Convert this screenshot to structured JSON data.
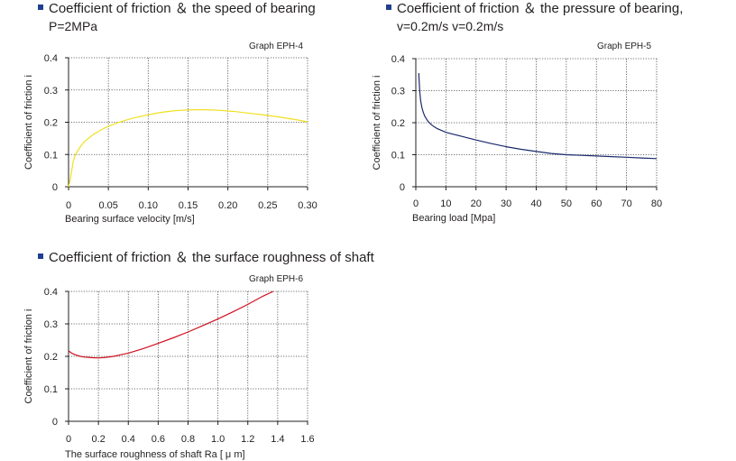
{
  "colors": {
    "bullet": "#1f3f8f",
    "grid": "#444444",
    "axis": "#231f20"
  },
  "chart_data": [
    {
      "id": "eph4",
      "type": "line",
      "heading": "Coefficient of friction ＆ the speed of bearing",
      "subheading": "P=2MPa",
      "graph_id": "Graph  EPH-4",
      "xlabel": "Bearing surface velocity  [m/s]",
      "ylabel": "Coefficient  of  friction   i",
      "xlim": [
        0,
        0.3
      ],
      "ylim": [
        0,
        0.4
      ],
      "x_ticks": [
        0,
        0.05,
        0.1,
        0.15,
        0.2,
        0.25,
        0.3
      ],
      "x_tick_labels": [
        "0",
        "0.05",
        "0.10",
        "0.15",
        "0.20",
        "0.25",
        "0.30"
      ],
      "y_ticks": [
        0,
        0.1,
        0.2,
        0.3,
        0.4
      ],
      "y_tick_labels": [
        "0",
        "0.1",
        "0.2",
        "0.3",
        "0.4"
      ],
      "grid": true,
      "series": [
        {
          "color": "#f0e020",
          "x": [
            0,
            0.002,
            0.004,
            0.006,
            0.008,
            0.01,
            0.015,
            0.02,
            0.03,
            0.04,
            0.05,
            0.06,
            0.07,
            0.08,
            0.09,
            0.1,
            0.11,
            0.12,
            0.13,
            0.14,
            0.15,
            0.16,
            0.17,
            0.18,
            0.19,
            0.2,
            0.21,
            0.22,
            0.23,
            0.24,
            0.25,
            0.26,
            0.27,
            0.28,
            0.29,
            0.3
          ],
          "y": [
            0,
            0.02,
            0.05,
            0.08,
            0.095,
            0.105,
            0.125,
            0.14,
            0.16,
            0.175,
            0.188,
            0.197,
            0.205,
            0.212,
            0.218,
            0.223,
            0.228,
            0.232,
            0.235,
            0.237,
            0.238,
            0.239,
            0.239,
            0.238,
            0.237,
            0.235,
            0.233,
            0.23,
            0.227,
            0.224,
            0.221,
            0.218,
            0.214,
            0.21,
            0.206,
            0.201
          ]
        }
      ]
    },
    {
      "id": "eph5",
      "type": "line",
      "heading": "Coefficient of friction  ＆  the pressure of bearing,",
      "subheading": "v=0.2m/s v=0.2m/s",
      "graph_id": "Graph  EPH-5",
      "xlabel": "Bearing load  [Mpa]",
      "ylabel": "Coefficient  of  friction   i",
      "xlim": [
        0,
        80
      ],
      "ylim": [
        0,
        0.4
      ],
      "x_ticks": [
        0,
        10,
        20,
        30,
        40,
        50,
        60,
        70,
        80
      ],
      "x_tick_labels": [
        "0",
        "10",
        "20",
        "30",
        "40",
        "50",
        "60",
        "70",
        "80"
      ],
      "y_ticks": [
        0,
        0.1,
        0.2,
        0.3,
        0.4
      ],
      "y_tick_labels": [
        "0",
        "0.1",
        "0.2",
        "0.3",
        "0.4"
      ],
      "grid": true,
      "series": [
        {
          "color": "#1a2a6c",
          "x": [
            1,
            1.3,
            1.6,
            2,
            2.5,
            3,
            4,
            5,
            6,
            7,
            8,
            9,
            10,
            12,
            15,
            20,
            25,
            30,
            35,
            40,
            45,
            50,
            55,
            60,
            65,
            70,
            75,
            80
          ],
          "y": [
            0.355,
            0.3,
            0.27,
            0.248,
            0.232,
            0.22,
            0.205,
            0.195,
            0.188,
            0.182,
            0.178,
            0.174,
            0.17,
            0.165,
            0.158,
            0.146,
            0.135,
            0.125,
            0.117,
            0.11,
            0.104,
            0.1,
            0.098,
            0.096,
            0.094,
            0.092,
            0.09,
            0.088
          ]
        }
      ]
    },
    {
      "id": "eph6",
      "type": "line",
      "heading": "Coefficient of friction ＆ the surface roughness of shaft",
      "graph_id": "Graph  EPH-6",
      "xlabel": "The surface roughness of shaft  Ra [ μ m]",
      "ylabel": "Coefficient  of  friction   i",
      "xlim": [
        0,
        1.6
      ],
      "ylim": [
        0,
        0.4
      ],
      "x_ticks": [
        0,
        0.2,
        0.4,
        0.6,
        0.8,
        1.0,
        1.2,
        1.4,
        1.6
      ],
      "x_tick_labels": [
        "0",
        "0.2",
        "0.4",
        "0.6",
        "0.8",
        "1.0",
        "1.2",
        "1.4",
        "1.6"
      ],
      "y_ticks": [
        0,
        0.1,
        0.2,
        0.3,
        0.4
      ],
      "y_tick_labels": [
        "0",
        "0.1",
        "0.2",
        "0.3",
        "0.4"
      ],
      "grid": true,
      "series": [
        {
          "color": "#d01020",
          "x": [
            0,
            0.02,
            0.05,
            0.08,
            0.1,
            0.15,
            0.2,
            0.25,
            0.3,
            0.4,
            0.5,
            0.6,
            0.7,
            0.8,
            0.9,
            1.0,
            1.1,
            1.2,
            1.3,
            1.37
          ],
          "y": [
            0.217,
            0.21,
            0.204,
            0.2,
            0.198,
            0.196,
            0.195,
            0.197,
            0.2,
            0.21,
            0.224,
            0.24,
            0.257,
            0.275,
            0.295,
            0.315,
            0.337,
            0.36,
            0.385,
            0.4
          ]
        }
      ]
    }
  ]
}
